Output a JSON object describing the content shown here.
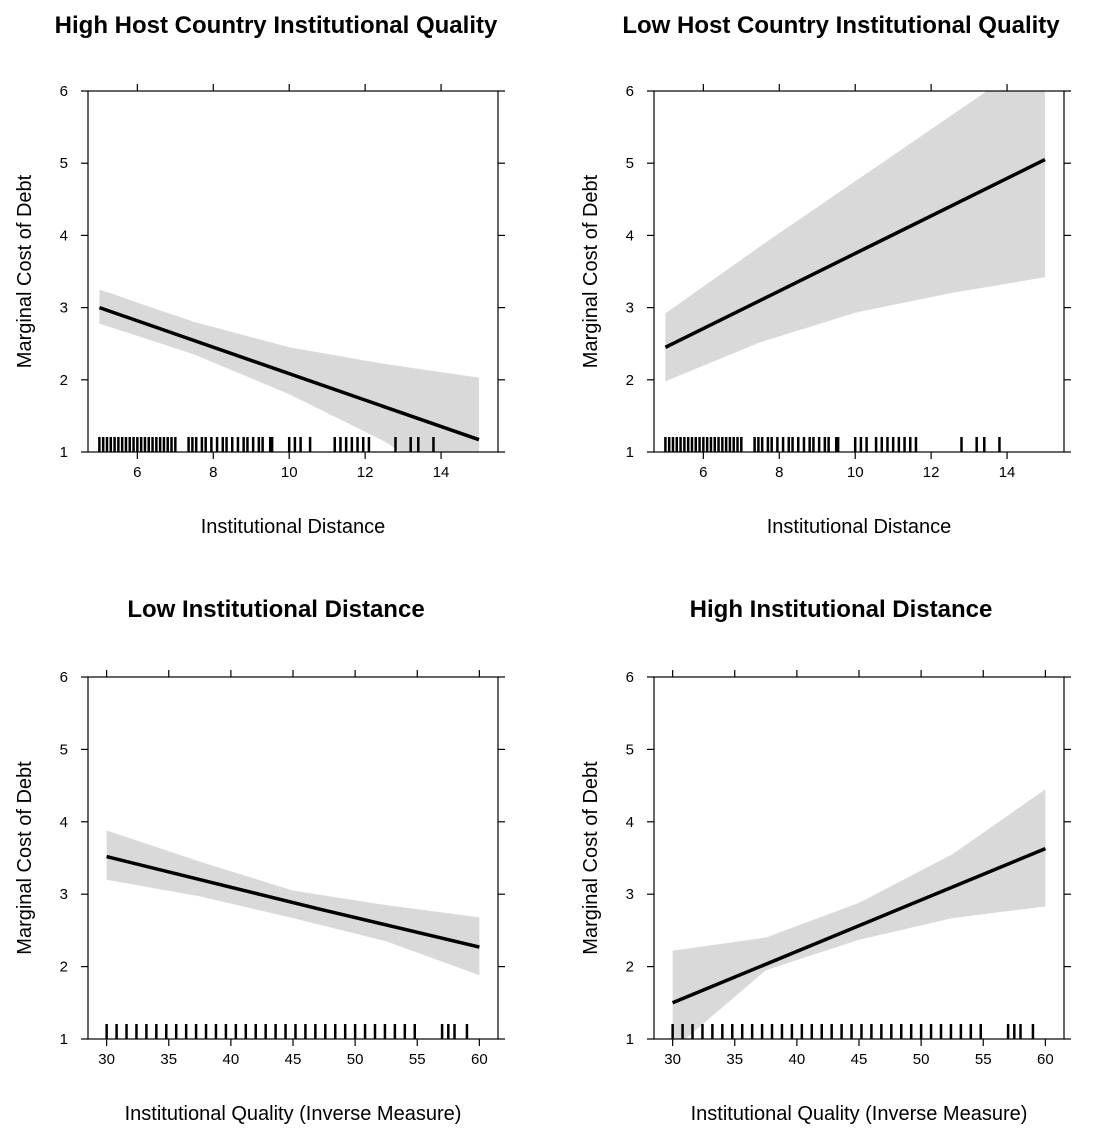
{
  "chart_data": [
    {
      "type": "line",
      "title": "High Host Country Institutional Quality",
      "xlabel": "Institutional Distance",
      "ylabel": "Marginal Cost of Debt",
      "xlim": [
        4.7,
        15.5
      ],
      "ylim": [
        1,
        6
      ],
      "xticks": [
        6,
        8,
        10,
        12,
        14
      ],
      "xtick_labels": [
        "6",
        "8",
        "10",
        "12",
        "14"
      ],
      "yticks": [
        1,
        2,
        3,
        4,
        5,
        6
      ],
      "ytick_labels": [
        "1",
        "2",
        "3",
        "4",
        "5",
        "6"
      ],
      "grid": false,
      "line": {
        "x": [
          5,
          15
        ],
        "y": [
          3.0,
          1.17
        ]
      },
      "ci_band": {
        "x": [
          5,
          7.5,
          10,
          12.5,
          15
        ],
        "lower": [
          2.78,
          2.35,
          1.8,
          1.15,
          0.3
        ],
        "upper": [
          3.25,
          2.8,
          2.45,
          2.22,
          2.03
        ]
      },
      "rug": [
        5.0,
        5.1,
        5.2,
        5.3,
        5.4,
        5.5,
        5.6,
        5.7,
        5.8,
        5.9,
        6.0,
        6.1,
        6.2,
        6.3,
        6.4,
        6.5,
        6.6,
        6.7,
        6.8,
        6.9,
        7.0,
        7.35,
        7.45,
        7.55,
        7.7,
        7.8,
        7.95,
        8.1,
        8.25,
        8.35,
        8.5,
        8.65,
        8.8,
        8.9,
        9.05,
        9.2,
        9.3,
        9.5,
        9.55,
        10.0,
        10.15,
        10.3,
        10.55,
        11.2,
        11.35,
        11.5,
        11.65,
        11.8,
        11.95,
        12.1,
        12.8,
        13.2,
        13.4,
        13.8
      ],
      "colors": {
        "line": "#000000",
        "band": "#d9d9d9"
      }
    },
    {
      "type": "line",
      "title": "Low Host Country Institutional Quality",
      "xlabel": "Institutional Distance",
      "ylabel": "Marginal Cost of Debt",
      "xlim": [
        4.7,
        15.5
      ],
      "ylim": [
        1,
        6
      ],
      "xticks": [
        6,
        8,
        10,
        12,
        14
      ],
      "xtick_labels": [
        "6",
        "8",
        "10",
        "12",
        "14"
      ],
      "yticks": [
        1,
        2,
        3,
        4,
        5,
        6
      ],
      "ytick_labels": [
        "1",
        "2",
        "3",
        "4",
        "5",
        "6"
      ],
      "grid": false,
      "line": {
        "x": [
          5,
          15
        ],
        "y": [
          2.45,
          5.05
        ]
      },
      "ci_band": {
        "x": [
          5,
          7.5,
          10,
          12.5,
          15
        ],
        "lower": [
          1.98,
          2.52,
          2.93,
          3.2,
          3.42
        ],
        "upper": [
          2.92,
          3.85,
          4.75,
          5.65,
          6.55
        ]
      },
      "rug": [
        5.0,
        5.1,
        5.2,
        5.3,
        5.4,
        5.5,
        5.6,
        5.7,
        5.8,
        5.9,
        6.0,
        6.1,
        6.2,
        6.3,
        6.4,
        6.5,
        6.6,
        6.7,
        6.8,
        6.9,
        7.0,
        7.35,
        7.45,
        7.55,
        7.7,
        7.8,
        7.95,
        8.1,
        8.25,
        8.35,
        8.5,
        8.65,
        8.8,
        8.9,
        9.05,
        9.2,
        9.3,
        9.5,
        9.55,
        10.0,
        10.15,
        10.3,
        10.55,
        10.7,
        10.85,
        11.0,
        11.15,
        11.3,
        11.45,
        11.6,
        12.8,
        13.2,
        13.4,
        13.8
      ],
      "colors": {
        "line": "#000000",
        "band": "#d9d9d9"
      }
    },
    {
      "type": "line",
      "title": "Low Institutional Distance",
      "xlabel": "Institutional Quality (Inverse Measure)",
      "ylabel": "Marginal Cost of Debt",
      "xlim": [
        28.5,
        61.5
      ],
      "ylim": [
        1,
        6
      ],
      "xticks": [
        30,
        35,
        40,
        45,
        50,
        55,
        60
      ],
      "xtick_labels": [
        "30",
        "35",
        "40",
        "45",
        "50",
        "55",
        "60"
      ],
      "yticks": [
        1,
        2,
        3,
        4,
        5,
        6
      ],
      "ytick_labels": [
        "1",
        "2",
        "3",
        "4",
        "5",
        "6"
      ],
      "grid": false,
      "line": {
        "x": [
          30,
          47,
          60
        ],
        "y": [
          3.52,
          2.8,
          2.27
        ]
      },
      "ci_band": {
        "x": [
          30,
          37.5,
          45,
          52.5,
          60
        ],
        "lower": [
          3.2,
          2.97,
          2.67,
          2.35,
          1.88
        ],
        "upper": [
          3.88,
          3.45,
          3.05,
          2.85,
          2.68
        ]
      },
      "rug": [
        30.0,
        30.8,
        31.6,
        32.4,
        33.2,
        34.0,
        34.8,
        35.6,
        36.4,
        37.2,
        38.0,
        38.8,
        39.6,
        40.4,
        41.2,
        42.0,
        42.8,
        43.6,
        44.4,
        45.2,
        46.0,
        46.8,
        47.6,
        48.4,
        49.2,
        50.0,
        50.8,
        51.6,
        52.4,
        53.2,
        54.0,
        54.8,
        57.0,
        57.5,
        58.0,
        59.0
      ],
      "colors": {
        "line": "#000000",
        "band": "#d9d9d9"
      }
    },
    {
      "type": "line",
      "title": "High Institutional Distance",
      "xlabel": "Institutional Quality (Inverse Measure)",
      "ylabel": "Marginal Cost of Debt",
      "xlim": [
        28.5,
        61.5
      ],
      "ylim": [
        1,
        6
      ],
      "xticks": [
        30,
        35,
        40,
        45,
        50,
        55,
        60
      ],
      "xtick_labels": [
        "30",
        "35",
        "40",
        "45",
        "50",
        "55",
        "60"
      ],
      "yticks": [
        1,
        2,
        3,
        4,
        5,
        6
      ],
      "ytick_labels": [
        "1",
        "2",
        "3",
        "4",
        "5",
        "6"
      ],
      "grid": false,
      "line": {
        "x": [
          30,
          60
        ],
        "y": [
          1.5,
          3.63
        ]
      },
      "ci_band": {
        "x": [
          30,
          37.5,
          45,
          52.5,
          60
        ],
        "lower": [
          0.85,
          1.95,
          2.37,
          2.67,
          2.83
        ],
        "upper": [
          2.22,
          2.4,
          2.88,
          3.55,
          4.45
        ]
      },
      "rug": [
        30.0,
        30.8,
        31.6,
        32.4,
        33.2,
        34.0,
        34.8,
        35.6,
        36.4,
        37.2,
        38.0,
        38.8,
        39.6,
        40.4,
        41.2,
        42.0,
        42.8,
        43.6,
        44.4,
        45.2,
        46.0,
        46.8,
        47.6,
        48.4,
        49.2,
        50.0,
        50.8,
        51.6,
        52.4,
        53.2,
        54.0,
        54.8,
        57.0,
        57.5,
        58.0,
        59.0
      ],
      "colors": {
        "line": "#000000",
        "band": "#d9d9d9"
      }
    }
  ]
}
